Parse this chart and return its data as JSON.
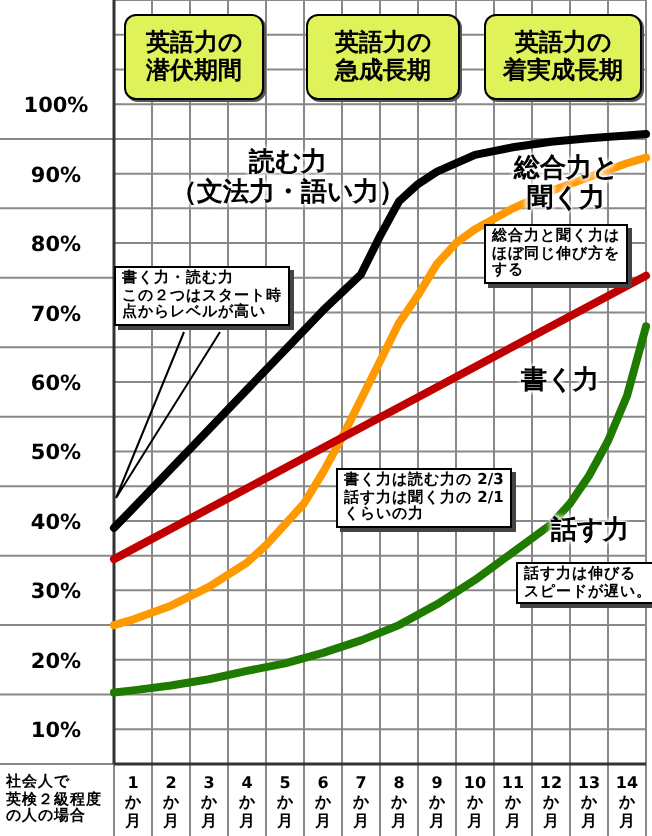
{
  "chart_data": {
    "type": "line",
    "xlabel": "社会人で英検２級程度の人の場合",
    "xlim": [
      0.5,
      14.5
    ],
    "xticks": [
      {
        "value": 1,
        "label": "1か月"
      },
      {
        "value": 2,
        "label": "2か月"
      },
      {
        "value": 3,
        "label": "3か月"
      },
      {
        "value": 4,
        "label": "4か月"
      },
      {
        "value": 5,
        "label": "5か月"
      },
      {
        "value": 6,
        "label": "6か月"
      },
      {
        "value": 7,
        "label": "7か月"
      },
      {
        "value": 8,
        "label": "8か月"
      },
      {
        "value": 9,
        "label": "9か月"
      },
      {
        "value": 10,
        "label": "10か月"
      },
      {
        "value": 11,
        "label": "11か月"
      },
      {
        "value": 12,
        "label": "12か月"
      },
      {
        "value": 13,
        "label": "13か月"
      },
      {
        "value": 14,
        "label": "14か月"
      }
    ],
    "ylim": [
      5,
      115
    ],
    "yticks": [
      {
        "value": 10,
        "label": "10%"
      },
      {
        "value": 20,
        "label": "20%"
      },
      {
        "value": 30,
        "label": "30%"
      },
      {
        "value": 40,
        "label": "40%"
      },
      {
        "value": 50,
        "label": "50%"
      },
      {
        "value": 60,
        "label": "60%"
      },
      {
        "value": 70,
        "label": "70%"
      },
      {
        "value": 80,
        "label": "80%"
      },
      {
        "value": 90,
        "label": "90%"
      },
      {
        "value": 100,
        "label": "100%"
      }
    ],
    "grid": true,
    "legend": false,
    "marker": "none",
    "line_style": "solid",
    "annotations": [
      "英語力の潜伏期間",
      "英語力の急成長期",
      "英語力の着実成長期",
      "書く力・読む力この２つはスタート時点からレベルが高い",
      "書く力は読む力の 2/3話す力は聞く力の 2/1くらいの力",
      "総合力と聞く力はほぼ同じ伸び方をする",
      "話す力は伸びるスピードが遅い。"
    ],
    "series": [
      {
        "name": "読む力（文法力・語い力）",
        "color": "#000000",
        "x": [
          0.5,
          1,
          2,
          3,
          4,
          5,
          6,
          7,
          7.5,
          8,
          8.5,
          9,
          10,
          11,
          12,
          13,
          14,
          14.5
        ],
        "values": [
          39,
          41.8,
          47.5,
          53.2,
          58.9,
          64.6,
          70.3,
          75.5,
          81,
          86,
          88.5,
          90.3,
          92.7,
          93.8,
          94.6,
          95.1,
          95.5,
          95.7
        ]
      },
      {
        "name": "総合力と聞く力",
        "color": "#ff9900",
        "x": [
          0.5,
          1,
          2,
          3,
          4,
          4.5,
          5,
          5.5,
          6,
          6.5,
          7,
          7.5,
          8,
          8.5,
          9,
          9.5,
          10,
          11,
          12,
          13,
          14,
          14.5
        ],
        "values": [
          25,
          25.8,
          27.8,
          30.5,
          34,
          36.5,
          39.5,
          42.5,
          47,
          52,
          57.5,
          63,
          68.5,
          72.5,
          77,
          80,
          82,
          85,
          87.5,
          89.5,
          91.5,
          92.3
        ]
      },
      {
        "name": "書く力",
        "color": "#c00000",
        "x": [
          0.5,
          14.5
        ],
        "values": [
          34.5,
          75.3
        ]
      },
      {
        "name": "話す力",
        "color": "#1f7a00",
        "x": [
          0.5,
          1,
          2,
          3,
          4,
          5,
          6,
          7,
          8,
          9,
          10,
          11,
          12,
          12.5,
          13,
          13.5,
          14,
          14.5
        ],
        "values": [
          15.3,
          15.6,
          16.3,
          17.2,
          18.4,
          19.5,
          21,
          22.8,
          25,
          28,
          31.5,
          35.5,
          39.5,
          42.5,
          46.5,
          51.5,
          58,
          68
        ]
      }
    ]
  }
}
